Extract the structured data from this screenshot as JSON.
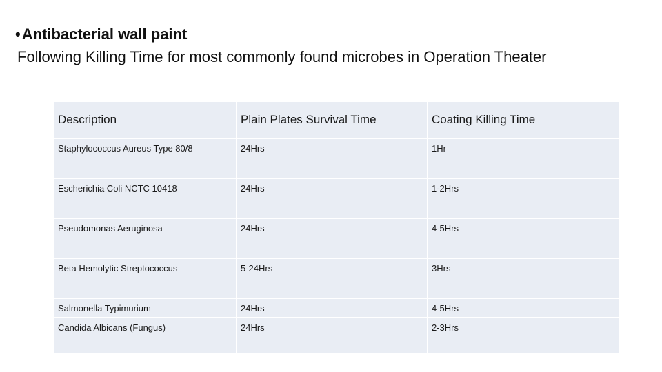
{
  "heading": {
    "bullet": "•",
    "title": "Antibacterial wall paint",
    "subtitle": "Following Killing Time for most commonly found microbes in Operation Theater"
  },
  "table": {
    "headers": [
      "Description",
      "Plain Plates Survival Time",
      "Coating Killing Time"
    ],
    "rows": [
      [
        "Staphylococcus Aureus Type 80/8",
        "24Hrs",
        "1Hr"
      ],
      [
        "Escherichia Coli NCTC 10418",
        "24Hrs",
        "1-2Hrs"
      ],
      [
        "Pseudomonas Aeruginosa",
        "24Hrs",
        "4-5Hrs"
      ],
      [
        "Beta Hemolytic Streptococcus",
        "5-24Hrs",
        "3Hrs"
      ],
      [
        "Salmonella Typimurium",
        "24Hrs",
        "4-5Hrs"
      ],
      [
        "Candida Albicans (Fungus)",
        "24Hrs",
        "2-3Hrs"
      ]
    ]
  },
  "colors": {
    "cell_background": "#e9edf4",
    "cell_border": "#ffffff",
    "text": "#111111"
  }
}
